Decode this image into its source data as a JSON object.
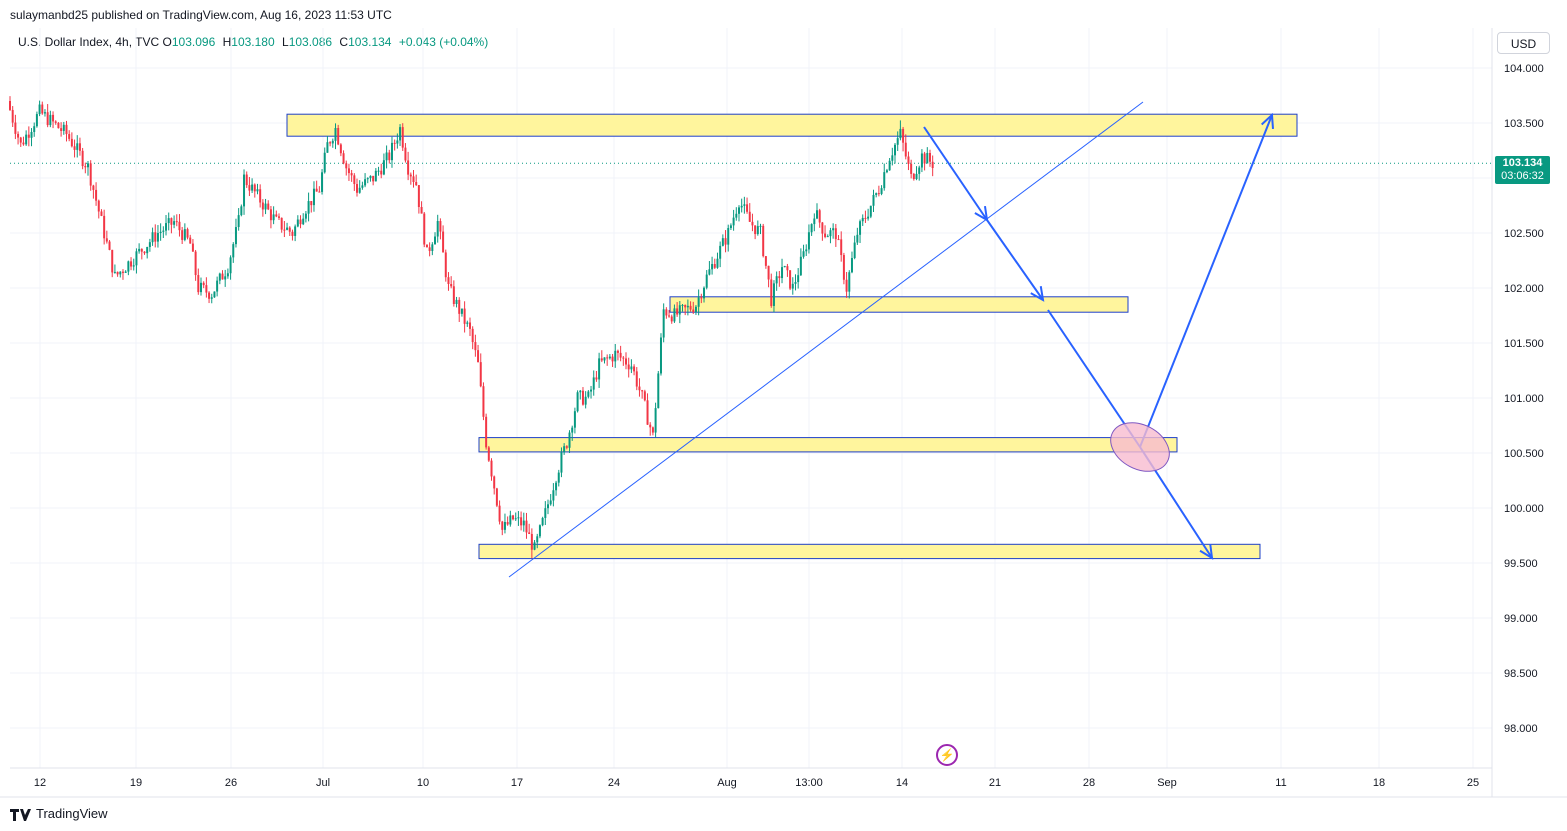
{
  "header": {
    "publisher_text": "sulaymanbd25 published on TradingView.com, Aug 16, 2023 11:53 UTC"
  },
  "legend": {
    "symbol": "U.S. Dollar Index, 4h, TVC",
    "open_label": "O",
    "open": "103.096",
    "high_label": "H",
    "high": "103.180",
    "low_label": "L",
    "low": "103.086",
    "close_label": "C",
    "close": "103.134",
    "change": "+0.043 (+0.04%)"
  },
  "price_scale": {
    "currency": "USD",
    "current_price": "103.134",
    "countdown": "03:06:32"
  },
  "footer": {
    "brand": "TradingView"
  },
  "icons": {
    "logo": "tradingview-logo-icon",
    "alert": "lightning-bolt-icon"
  },
  "colors": {
    "up": "#089981",
    "down": "#f23645",
    "zone_fill": "#fff59d",
    "zone_border": "#1e40c8",
    "arrow": "#2962ff",
    "ellipse_fill": "#f8bbd0",
    "ellipse_border": "#7e57c2"
  },
  "chart_data": {
    "type": "candlestick",
    "title": "U.S. Dollar Index, 4h, TVC",
    "ylim": [
      97.6,
      104.2
    ],
    "y_ticks": [
      "104.000",
      "103.500",
      "103.000",
      "102.500",
      "102.000",
      "101.500",
      "101.000",
      "100.500",
      "100.000",
      "99.500",
      "99.000",
      "98.500",
      "98.000"
    ],
    "x_ticks": [
      "12",
      "19",
      "26",
      "Jul",
      "10",
      "17",
      "24",
      "Aug",
      "13:00",
      "14",
      "21",
      "28",
      "Sep",
      "11",
      "18",
      "25"
    ],
    "grid": true,
    "series": [
      {
        "name": "DXY",
        "path": [
          [
            0,
            103.7
          ],
          [
            5,
            103.3
          ],
          [
            12,
            103.6
          ],
          [
            22,
            103.4
          ],
          [
            30,
            103.1
          ],
          [
            35,
            102.6
          ],
          [
            40,
            102.1
          ],
          [
            48,
            102.3
          ],
          [
            56,
            102.5
          ],
          [
            62,
            102.6
          ],
          [
            68,
            102.4
          ],
          [
            71,
            102.0
          ],
          [
            76,
            101.95
          ],
          [
            82,
            102.2
          ],
          [
            86,
            102.6
          ],
          [
            88,
            103.0
          ],
          [
            94,
            102.8
          ],
          [
            100,
            102.6
          ],
          [
            106,
            102.5
          ],
          [
            110,
            102.7
          ],
          [
            116,
            102.9
          ],
          [
            119,
            103.3
          ],
          [
            122,
            103.45
          ],
          [
            126,
            103.1
          ],
          [
            130,
            102.9
          ],
          [
            136,
            103.0
          ],
          [
            142,
            103.2
          ],
          [
            146,
            103.45
          ],
          [
            149,
            103.1
          ],
          [
            152,
            102.95
          ],
          [
            156,
            102.3
          ],
          [
            160,
            102.6
          ],
          [
            164,
            102.0
          ],
          [
            168,
            101.8
          ],
          [
            172,
            101.6
          ],
          [
            175,
            101.3
          ],
          [
            178,
            100.6
          ],
          [
            181,
            100.2
          ],
          [
            184,
            99.8
          ],
          [
            188,
            99.9
          ],
          [
            192,
            99.85
          ],
          [
            196,
            99.62
          ],
          [
            200,
            99.95
          ],
          [
            204,
            100.3
          ],
          [
            208,
            100.6
          ],
          [
            212,
            101.0
          ],
          [
            216,
            101.0
          ],
          [
            220,
            101.3
          ],
          [
            226,
            101.4
          ],
          [
            232,
            101.3
          ],
          [
            236,
            101.0
          ],
          [
            240,
            100.65
          ],
          [
            244,
            101.8
          ],
          [
            248,
            101.75
          ],
          [
            252,
            101.8
          ],
          [
            256,
            101.85
          ],
          [
            260,
            102.1
          ],
          [
            264,
            102.3
          ],
          [
            268,
            102.5
          ],
          [
            272,
            102.8
          ],
          [
            276,
            102.6
          ],
          [
            280,
            102.5
          ],
          [
            284,
            101.9
          ],
          [
            288,
            102.2
          ],
          [
            292,
            102.0
          ],
          [
            296,
            102.3
          ],
          [
            300,
            102.7
          ],
          [
            304,
            102.5
          ],
          [
            308,
            102.5
          ],
          [
            312,
            102.0
          ],
          [
            316,
            102.5
          ],
          [
            320,
            102.7
          ],
          [
            324,
            102.9
          ],
          [
            328,
            103.2
          ],
          [
            332,
            103.4
          ],
          [
            336,
            103.0
          ],
          [
            340,
            103.2
          ],
          [
            344,
            103.134
          ]
        ],
        "current": 103.134
      }
    ],
    "zones": [
      {
        "from": 102.02,
        "to": 103.59,
        "y_low": 103.38,
        "y_high": 103.58
      },
      {
        "from": 244,
        "to": 413,
        "y_low": 101.78,
        "y_high": 101.92
      },
      {
        "from": 174,
        "to": 429,
        "y_low": 100.51,
        "y_high": 100.64
      },
      {
        "from": 174,
        "to": 459,
        "y_low": 99.54,
        "y_high": 99.67
      }
    ],
    "trendline": [
      [
        185,
        99.36
      ],
      [
        415,
        103.65
      ]
    ],
    "projection": [
      [
        336,
        103.45
      ],
      [
        360,
        102.6
      ],
      [
        380,
        101.8
      ],
      [
        414,
        100.55
      ],
      [
        462,
        103.55
      ]
    ],
    "projection_branch": [
      [
        414,
        100.55
      ],
      [
        441,
        99.55
      ]
    ]
  }
}
